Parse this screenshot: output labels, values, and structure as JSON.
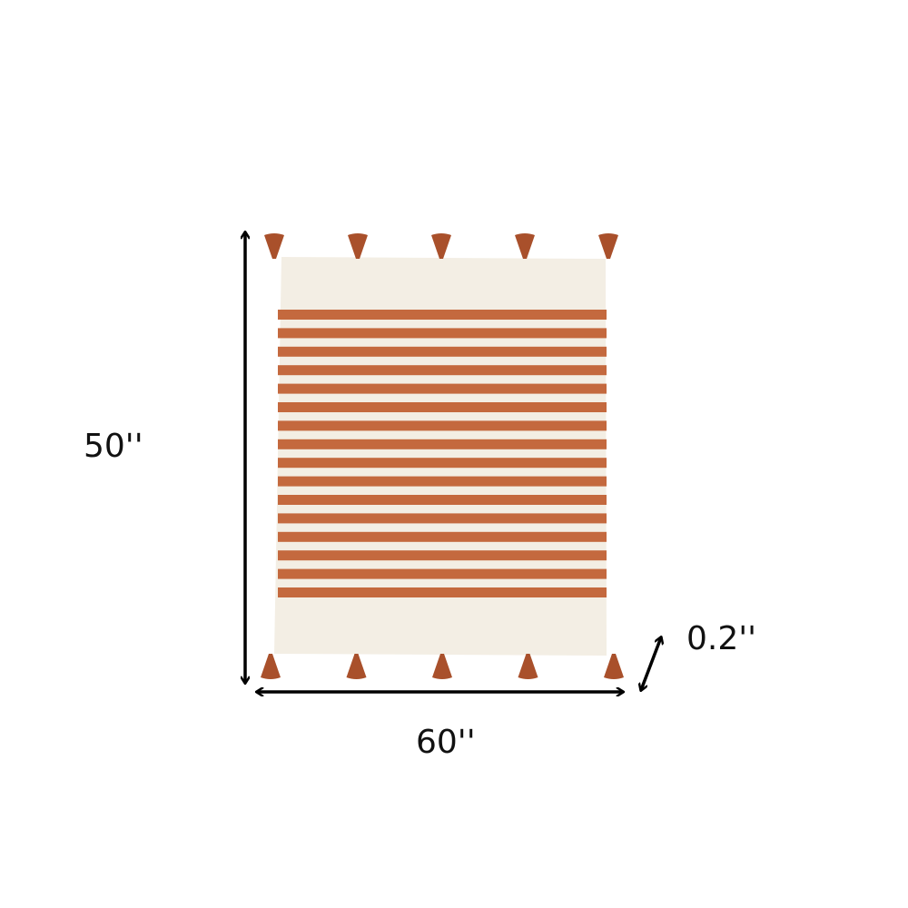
{
  "dimensions": {
    "height_label": "50''",
    "width_label": "60''",
    "depth_label": "0.2''"
  },
  "product": {
    "name": "striped-throw-blanket-with-tassels",
    "colors": {
      "base": "#f3eee4",
      "stripe": "#c4693e",
      "tassel": "#a9502b",
      "arrow": "#000000"
    },
    "stripe_count": 16,
    "tassels_per_edge": 5
  }
}
